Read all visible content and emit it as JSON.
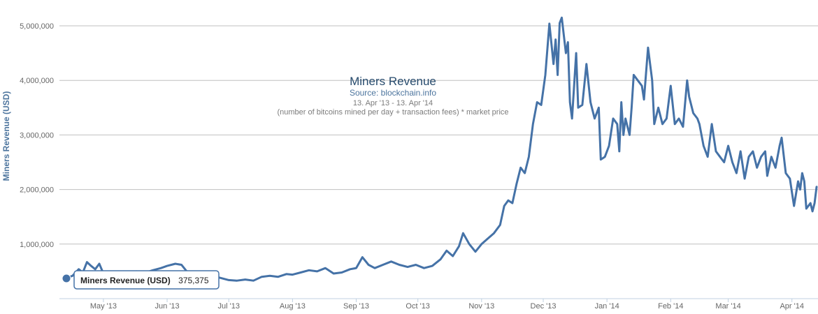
{
  "chart_data": {
    "type": "line",
    "title": "Miners Revenue",
    "subtitle": {
      "source": "Source: blockchain.info",
      "range": "13. Apr '13 - 13. Apr '14",
      "formula": "(number of bitcoins mined per day + transaction fees) * market price"
    },
    "xlabel": "",
    "ylabel": "Miners Revenue (USD)",
    "ylim": [
      0,
      5200000
    ],
    "yticks": [
      {
        "value": 1000000,
        "label": "1,000,000"
      },
      {
        "value": 2000000,
        "label": "2,000,000"
      },
      {
        "value": 3000000,
        "label": "3,000,000"
      },
      {
        "value": 4000000,
        "label": "4,000,000"
      },
      {
        "value": 5000000,
        "label": "5,000,000"
      }
    ],
    "xlim_days": [
      0,
      365
    ],
    "xticks": [
      {
        "day": 18,
        "label": "May '13"
      },
      {
        "day": 49,
        "label": "Jun '13"
      },
      {
        "day": 79,
        "label": "Jul '13"
      },
      {
        "day": 110,
        "label": "Aug '13"
      },
      {
        "day": 141,
        "label": "Sep '13"
      },
      {
        "day": 171,
        "label": "Oct '13"
      },
      {
        "day": 202,
        "label": "Nov '13"
      },
      {
        "day": 232,
        "label": "Dec '13"
      },
      {
        "day": 263,
        "label": "Jan '14"
      },
      {
        "day": 294,
        "label": "Feb '14"
      },
      {
        "day": 322,
        "label": "Mar '14"
      },
      {
        "day": 353,
        "label": "Apr '14"
      }
    ],
    "series": [
      {
        "name": "Miners Revenue (USD)",
        "color": "#4572a7",
        "anchor_points": [
          [
            0,
            375375
          ],
          [
            3,
            420000
          ],
          [
            6,
            540000
          ],
          [
            8,
            480000
          ],
          [
            10,
            670000
          ],
          [
            12,
            600000
          ],
          [
            14,
            540000
          ],
          [
            16,
            640000
          ],
          [
            18,
            460000
          ],
          [
            22,
            420000
          ],
          [
            26,
            480000
          ],
          [
            30,
            440000
          ],
          [
            34,
            500000
          ],
          [
            38,
            470000
          ],
          [
            42,
            520000
          ],
          [
            46,
            560000
          ],
          [
            49,
            600000
          ],
          [
            53,
            640000
          ],
          [
            56,
            620000
          ],
          [
            59,
            480000
          ],
          [
            63,
            420000
          ],
          [
            67,
            400000
          ],
          [
            71,
            420000
          ],
          [
            75,
            380000
          ],
          [
            79,
            340000
          ],
          [
            83,
            330000
          ],
          [
            87,
            350000
          ],
          [
            91,
            330000
          ],
          [
            95,
            400000
          ],
          [
            99,
            420000
          ],
          [
            103,
            400000
          ],
          [
            107,
            450000
          ],
          [
            110,
            440000
          ],
          [
            114,
            480000
          ],
          [
            118,
            520000
          ],
          [
            122,
            500000
          ],
          [
            126,
            560000
          ],
          [
            130,
            460000
          ],
          [
            134,
            480000
          ],
          [
            138,
            540000
          ],
          [
            141,
            560000
          ],
          [
            144,
            760000
          ],
          [
            147,
            620000
          ],
          [
            150,
            560000
          ],
          [
            154,
            620000
          ],
          [
            158,
            680000
          ],
          [
            162,
            620000
          ],
          [
            166,
            580000
          ],
          [
            170,
            620000
          ],
          [
            174,
            560000
          ],
          [
            178,
            600000
          ],
          [
            182,
            720000
          ],
          [
            185,
            880000
          ],
          [
            188,
            780000
          ],
          [
            191,
            960000
          ],
          [
            193,
            1200000
          ],
          [
            196,
            1000000
          ],
          [
            199,
            860000
          ],
          [
            202,
            1000000
          ],
          [
            205,
            1100000
          ],
          [
            208,
            1200000
          ],
          [
            211,
            1350000
          ],
          [
            213,
            1700000
          ],
          [
            215,
            1800000
          ],
          [
            217,
            1750000
          ],
          [
            219,
            2100000
          ],
          [
            221,
            2400000
          ],
          [
            223,
            2300000
          ],
          [
            225,
            2600000
          ],
          [
            227,
            3200000
          ],
          [
            229,
            3600000
          ],
          [
            231,
            3550000
          ],
          [
            233,
            4100000
          ],
          [
            235,
            5040000
          ],
          [
            237,
            4300000
          ],
          [
            238,
            4750000
          ],
          [
            239,
            4100000
          ],
          [
            240,
            5050000
          ],
          [
            241,
            5150000
          ],
          [
            243,
            4500000
          ],
          [
            244,
            4700000
          ],
          [
            245,
            3600000
          ],
          [
            246,
            3300000
          ],
          [
            248,
            4500000
          ],
          [
            249,
            3500000
          ],
          [
            251,
            3550000
          ],
          [
            253,
            4300000
          ],
          [
            255,
            3600000
          ],
          [
            257,
            3300000
          ],
          [
            259,
            3500000
          ],
          [
            260,
            2550000
          ],
          [
            262,
            2600000
          ],
          [
            264,
            2800000
          ],
          [
            266,
            3300000
          ],
          [
            268,
            3200000
          ],
          [
            269,
            2700000
          ],
          [
            270,
            3600000
          ],
          [
            271,
            3000000
          ],
          [
            272,
            3300000
          ],
          [
            274,
            3000000
          ],
          [
            275,
            3500000
          ],
          [
            276,
            4100000
          ],
          [
            278,
            4000000
          ],
          [
            280,
            3900000
          ],
          [
            281,
            3650000
          ],
          [
            283,
            4600000
          ],
          [
            285,
            4000000
          ],
          [
            286,
            3200000
          ],
          [
            288,
            3500000
          ],
          [
            290,
            3200000
          ],
          [
            292,
            3300000
          ],
          [
            294,
            3900000
          ],
          [
            296,
            3200000
          ],
          [
            298,
            3300000
          ],
          [
            300,
            3150000
          ],
          [
            302,
            4000000
          ],
          [
            303,
            3700000
          ],
          [
            305,
            3400000
          ],
          [
            307,
            3300000
          ],
          [
            308,
            3200000
          ],
          [
            310,
            2800000
          ],
          [
            312,
            2600000
          ],
          [
            314,
            3200000
          ],
          [
            316,
            2700000
          ],
          [
            318,
            2600000
          ],
          [
            320,
            2500000
          ],
          [
            322,
            2800000
          ],
          [
            324,
            2500000
          ],
          [
            326,
            2300000
          ],
          [
            328,
            2700000
          ],
          [
            330,
            2200000
          ],
          [
            332,
            2600000
          ],
          [
            334,
            2700000
          ],
          [
            336,
            2400000
          ],
          [
            338,
            2600000
          ],
          [
            340,
            2700000
          ],
          [
            341,
            2250000
          ],
          [
            343,
            2600000
          ],
          [
            345,
            2400000
          ],
          [
            347,
            2800000
          ],
          [
            348,
            2950000
          ],
          [
            350,
            2300000
          ],
          [
            352,
            2200000
          ],
          [
            353,
            1950000
          ],
          [
            354,
            1700000
          ],
          [
            356,
            2150000
          ],
          [
            357,
            2000000
          ],
          [
            358,
            2300000
          ],
          [
            359,
            2150000
          ],
          [
            360,
            1650000
          ],
          [
            362,
            1750000
          ],
          [
            363,
            1600000
          ],
          [
            364,
            1750000
          ],
          [
            365,
            2050000
          ]
        ]
      }
    ],
    "tooltip": {
      "series": "Miners Revenue (USD)",
      "value": "375,375"
    }
  }
}
